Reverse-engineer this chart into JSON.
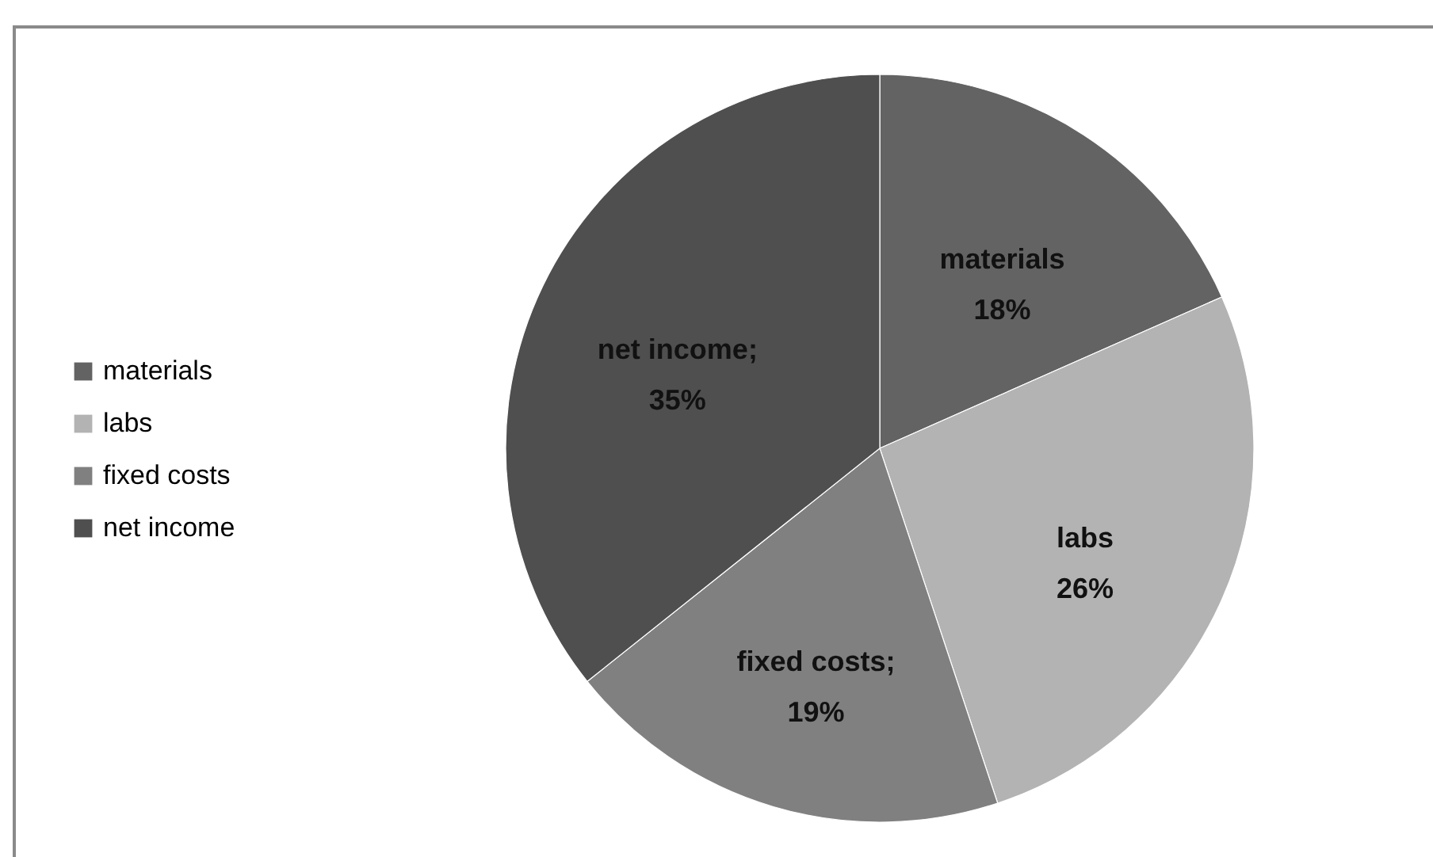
{
  "chart_data": {
    "type": "pie",
    "categories": [
      "materials",
      "labs",
      "fixed costs",
      "net income"
    ],
    "values": [
      18,
      26,
      19,
      35
    ],
    "colors": [
      "#636363",
      "#b3b3b3",
      "#808080",
      "#4f4f4f"
    ],
    "value_labels": [
      "materials\n18%",
      "labs\n26%",
      "fixed costs;\n19%",
      "net income;\n35%"
    ],
    "legend": "left"
  }
}
